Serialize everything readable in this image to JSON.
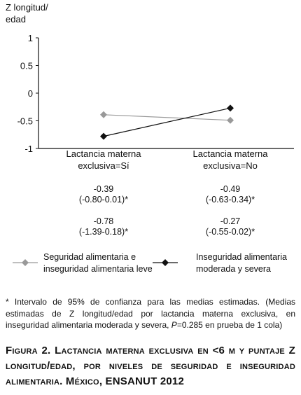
{
  "chart_data": {
    "type": "line",
    "ylabel": "Z longitud/\nedad",
    "ylim": [
      -1,
      1
    ],
    "yticks": [
      1,
      0.5,
      0,
      -0.5,
      -1
    ],
    "ytick_labels": [
      "1",
      "0.5",
      "0",
      "-0.5",
      "-1"
    ],
    "categories": [
      "Lactancia materna exclusiva=Sí",
      "Lactancia materna exclusiva=No"
    ],
    "category_lines": [
      [
        "Lactancia materna",
        "exclusiva=Sí"
      ],
      [
        "Lactancia materna",
        "exclusiva=No"
      ]
    ],
    "series": [
      {
        "name": "Seguridad alimentaria e inseguridad alimentaria leve",
        "name_lines": [
          "Seguridad alimentaria e",
          "inseguridad alimentaria leve"
        ],
        "values": [
          -0.39,
          -0.49
        ],
        "ci_labels": [
          "(-0.80-0.01)*",
          "(-0.63-0.34)*"
        ],
        "marker_color": "#999999",
        "line_color": "#999999"
      },
      {
        "name": "Inseguridad alimentaria moderada y severa",
        "name_lines": [
          "Inseguridad alimentaria",
          "moderada y severa"
        ],
        "values": [
          -0.78,
          -0.27
        ],
        "ci_labels": [
          "(-1.39-0.18)*",
          "(-0.55-0.02)*"
        ],
        "marker_color": "#111111",
        "line_color": "#111111"
      }
    ],
    "legend_position": "bottom",
    "grid": false
  },
  "footnote": "* Intervalo de 95% de confianza para las medias estimadas. (Medias estimadas de Z longitud/edad por lactancia materna exclusiva, en inseguridad alimentaria moderada y severa, P=0.285 en prueba de 1 cola)",
  "footnote_parts": {
    "before_p": "* Intervalo de 95% de confianza para las medias estimadas. (Medias estimadas de Z longitud/edad por lactancia materna exclusiva, en inseguridad alimentaria moderada y severa, ",
    "p": "P",
    "after_p": "=0.285 en prueba de 1 cola)"
  },
  "caption": "Figura 2. Lactancia materna exclusiva en <6 m y puntaje Z longitud/edad, por niveles de seguridad e inseguridad alimentaria. México, ENSANUT 2012"
}
